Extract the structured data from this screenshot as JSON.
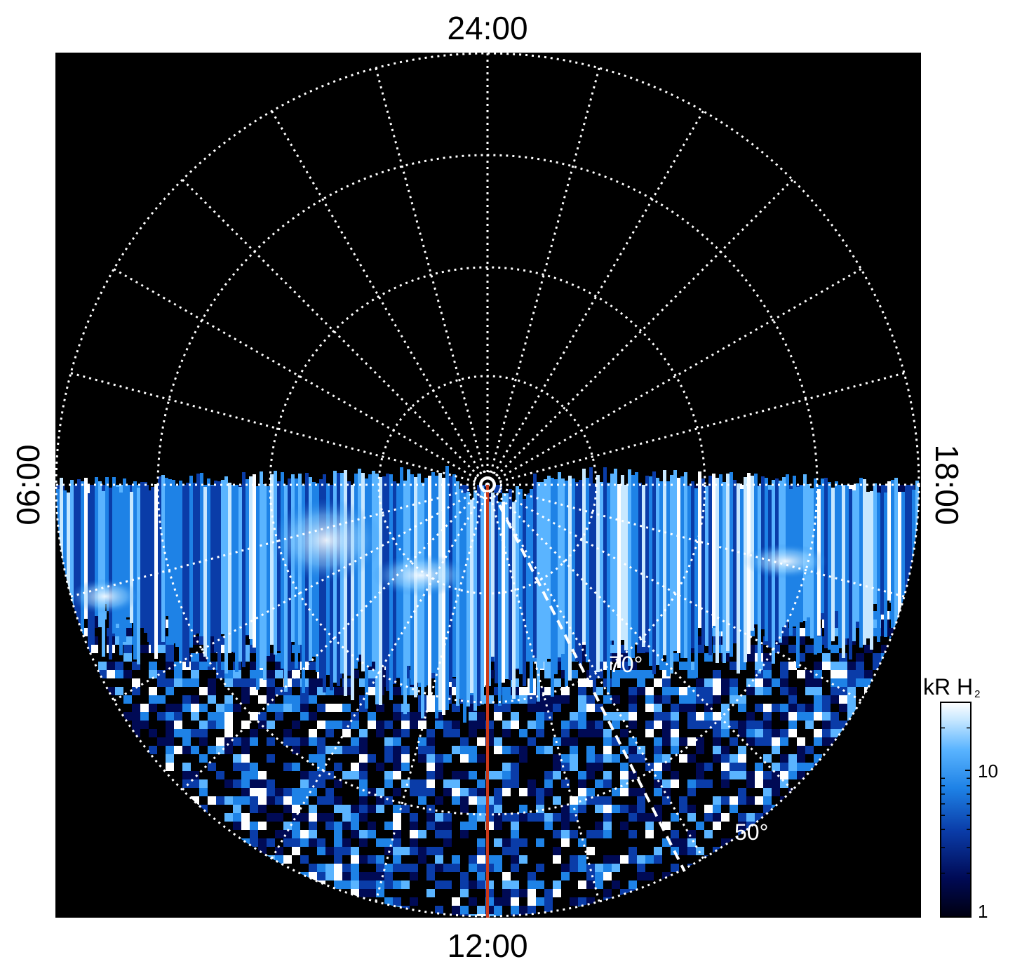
{
  "projection": {
    "type": "polar",
    "center_label": "",
    "local_time_labels": {
      "top": "24:00",
      "left": "06:00",
      "right": "18:00",
      "bottom": "12:00"
    },
    "latitude_labels": [
      {
        "text": "70°",
        "value": 70
      },
      {
        "text": "50°",
        "value": 50
      }
    ],
    "grid": true
  },
  "colorbar": {
    "title_main": "kR H",
    "title_sub": "2",
    "scale": "log",
    "range": [
      1,
      30
    ],
    "ticks": [
      {
        "label": "10",
        "value": 10
      },
      {
        "label": "1",
        "value": 1
      }
    ],
    "colors": [
      "#000010",
      "#000a55",
      "#0a3ca8",
      "#1e82e6",
      "#5ab4ff",
      "#c8e8ff",
      "#ffffff"
    ]
  },
  "colors": {
    "background": "#000000",
    "grid": "#ffffff",
    "meridian": "#cc3a1a",
    "aurora_base": "#0a50c8"
  }
}
